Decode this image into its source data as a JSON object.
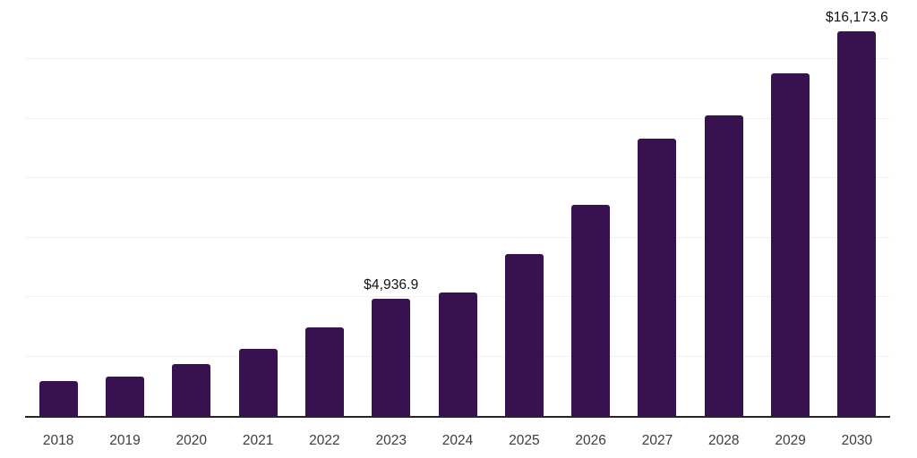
{
  "chart_data": {
    "type": "bar",
    "title": "",
    "xlabel": "",
    "ylabel": "",
    "categories": [
      "2018",
      "2019",
      "2020",
      "2021",
      "2022",
      "2023",
      "2024",
      "2025",
      "2026",
      "2027",
      "2028",
      "2029",
      "2030"
    ],
    "values": [
      1450,
      1660,
      2170,
      2830,
      3730,
      4936.9,
      5200,
      6820,
      8900,
      11650,
      12650,
      14400,
      16173.6
    ],
    "value_labels": [
      "",
      "",
      "",
      "",
      "",
      "$4,936.9",
      "",
      "",
      "",
      "",
      "",
      "",
      "$16,173.6"
    ],
    "labeled_points": [
      {
        "category": "2023",
        "label": "$4,936.9",
        "value": 4936.9
      },
      {
        "category": "2030",
        "label": "$16,173.6",
        "value": 16173.6
      }
    ],
    "ylim": [
      0,
      17500
    ],
    "gridline_step": 2500,
    "grid": true,
    "y_axis_tick_labels_visible": false,
    "legend_position": "none",
    "colors": {
      "bar": "#38124f",
      "axis_line": "#262626",
      "gridline": "#f1f1f1",
      "tick_label": "#3d3d3d",
      "data_label": "#111111",
      "background": "#ffffff"
    }
  }
}
